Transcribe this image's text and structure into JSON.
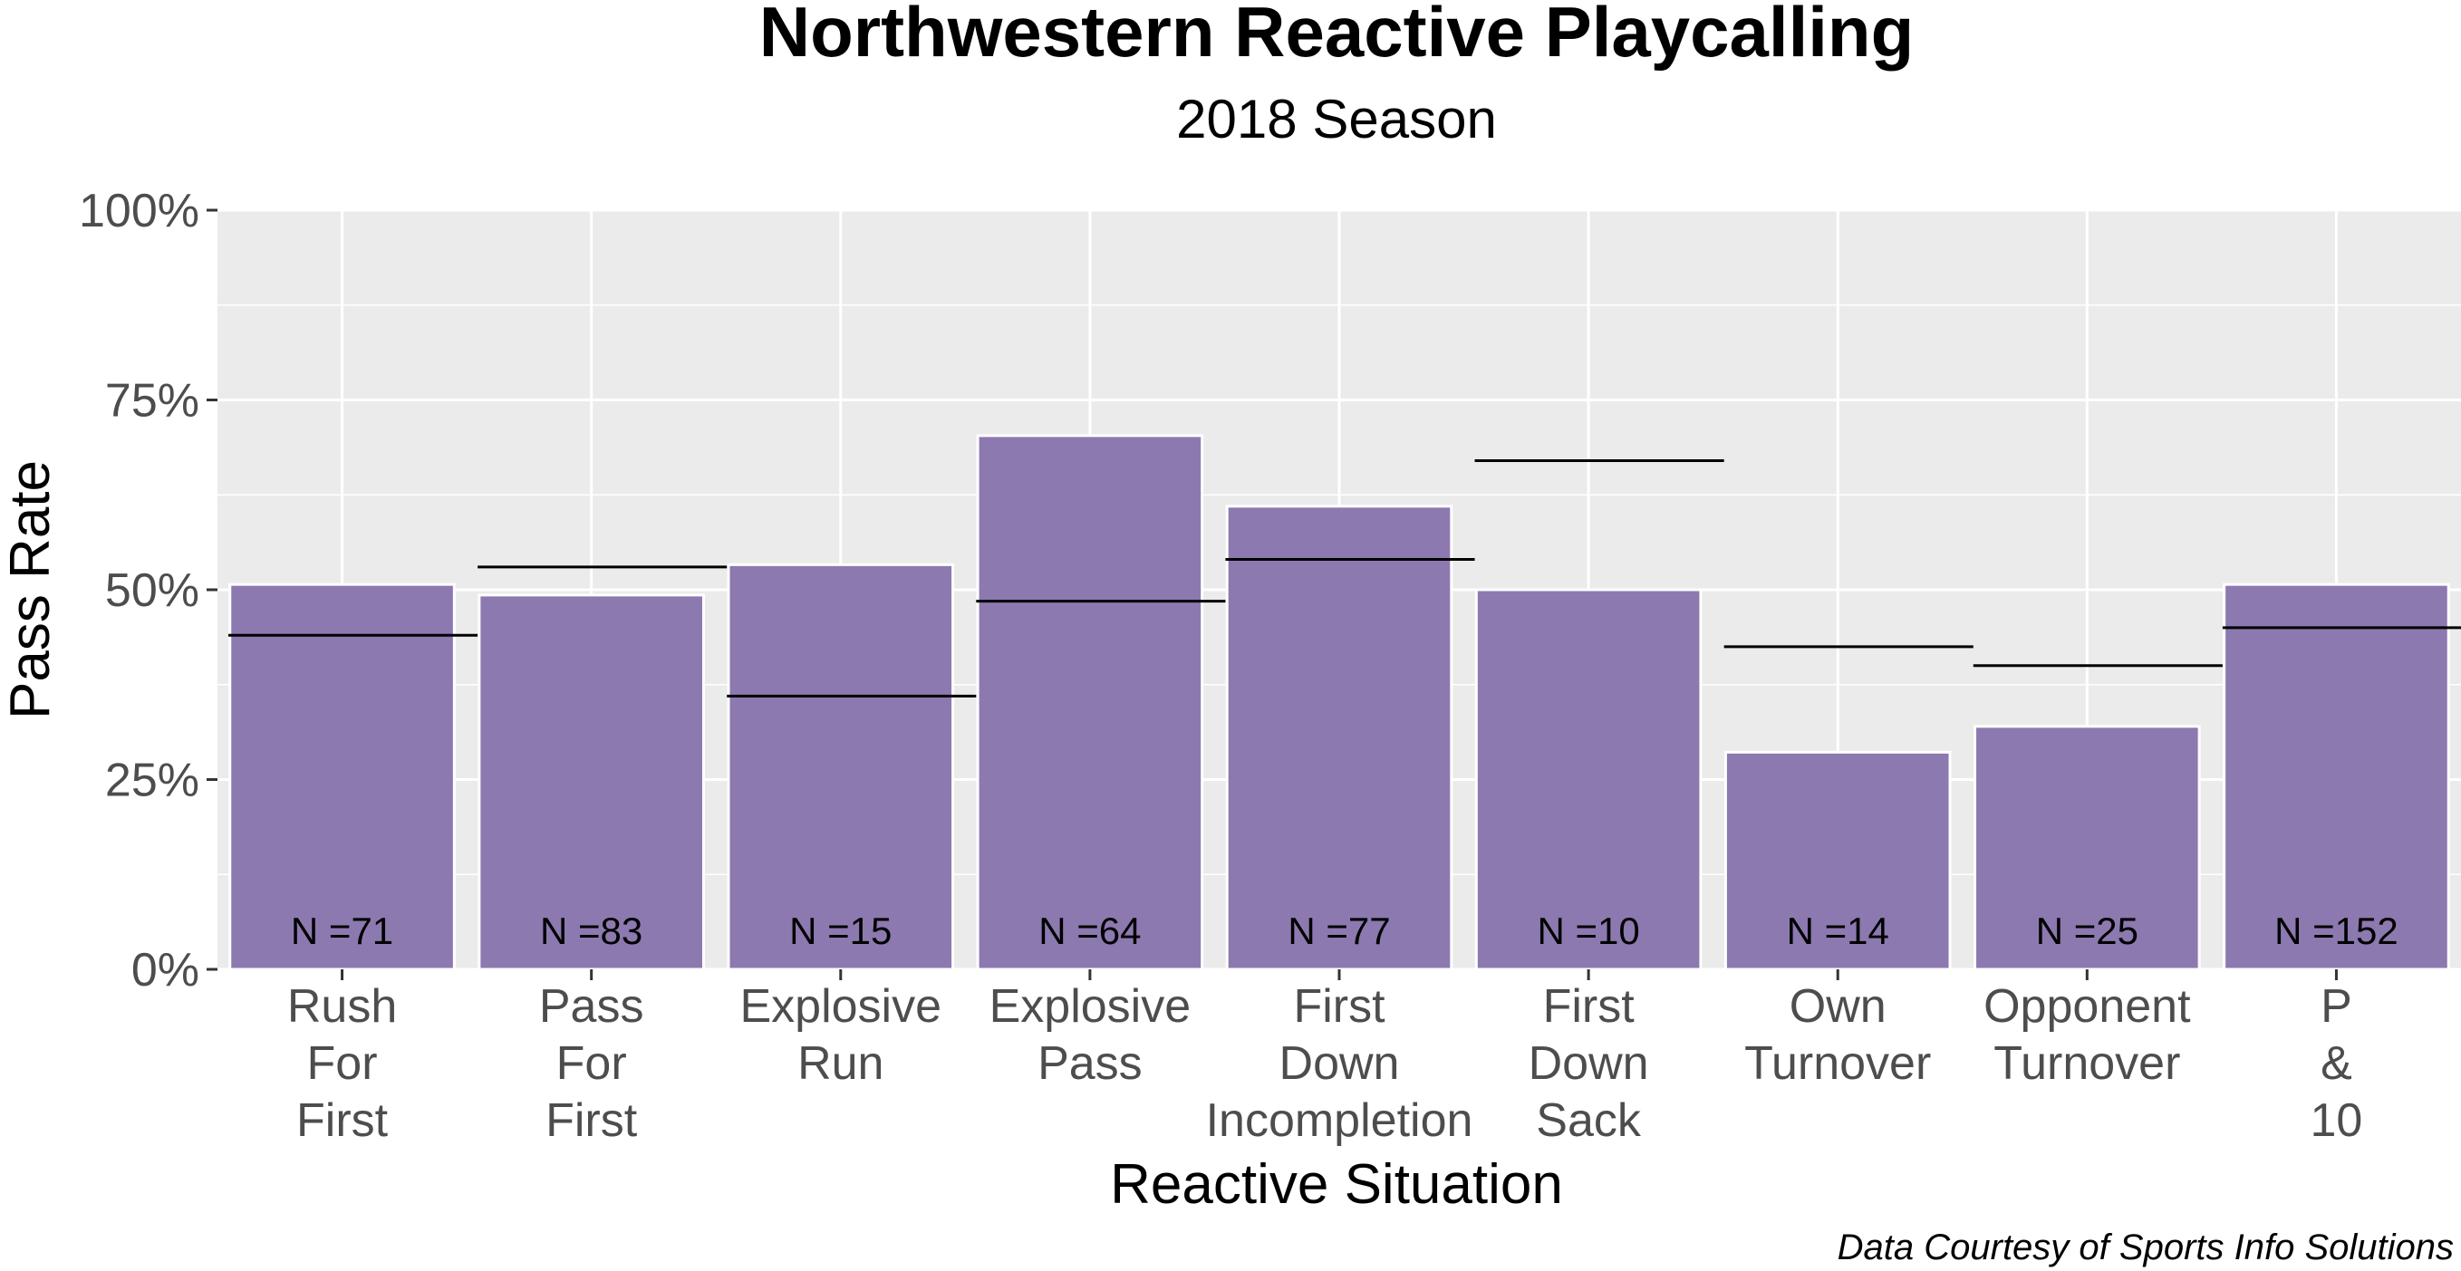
{
  "chart_data": {
    "type": "bar",
    "title": "Northwestern Reactive Playcalling",
    "subtitle": "2018 Season",
    "xlabel": "Reactive Situation",
    "ylabel": "Pass Rate",
    "ylim": [
      0,
      1
    ],
    "yticks": [
      {
        "value": 0,
        "label": "0%"
      },
      {
        "value": 0.25,
        "label": "25%"
      },
      {
        "value": 0.5,
        "label": "50%"
      },
      {
        "value": 0.75,
        "label": "75%"
      },
      {
        "value": 1.0,
        "label": "100%"
      }
    ],
    "categories": [
      [
        "Rush",
        "For",
        "First"
      ],
      [
        "Pass",
        "For",
        "First"
      ],
      [
        "Explosive",
        "Run"
      ],
      [
        "Explosive",
        "Pass"
      ],
      [
        "First",
        "Down",
        "Incompletion"
      ],
      [
        "First",
        "Down",
        "Sack"
      ],
      [
        "Own",
        "Turnover"
      ],
      [
        "Opponent",
        "Turnover"
      ],
      [
        "P",
        "&",
        "10"
      ]
    ],
    "values": [
      0.507,
      0.493,
      0.533,
      0.703,
      0.61,
      0.5,
      0.286,
      0.32,
      0.507
    ],
    "reference_values": [
      0.44,
      0.53,
      0.36,
      0.485,
      0.54,
      0.67,
      0.425,
      0.4,
      0.45
    ],
    "n_labels": [
      "N =71",
      "N =83",
      "N =15",
      "N =64",
      "N =77",
      "N =10",
      "N =14",
      "N =25",
      "N =152"
    ],
    "grid": true,
    "bar_color": "#8c79b0",
    "panel_color": "#ebebeb",
    "caption": "Data Courtesy of Sports Info Solutions"
  }
}
